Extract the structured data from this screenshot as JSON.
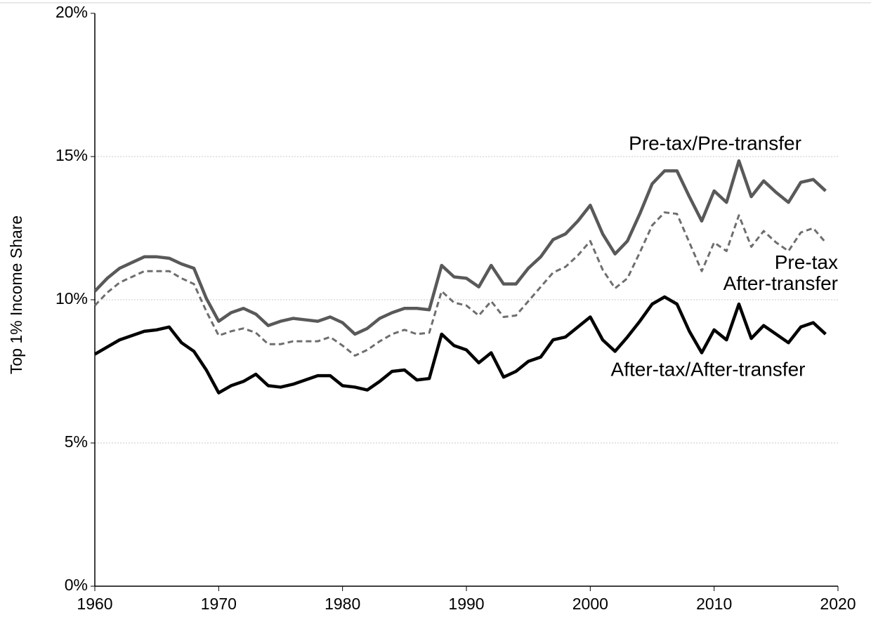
{
  "chart_data": {
    "type": "line",
    "y_label": "Top 1% Income Share",
    "x": [
      1960,
      1961,
      1962,
      1963,
      1964,
      1965,
      1966,
      1967,
      1968,
      1969,
      1970,
      1971,
      1972,
      1973,
      1974,
      1975,
      1976,
      1977,
      1978,
      1979,
      1980,
      1981,
      1982,
      1983,
      1984,
      1985,
      1986,
      1987,
      1988,
      1989,
      1990,
      1991,
      1992,
      1993,
      1994,
      1995,
      1996,
      1997,
      1998,
      1999,
      2000,
      2001,
      2002,
      2003,
      2004,
      2005,
      2006,
      2007,
      2008,
      2009,
      2010,
      2011,
      2012,
      2013,
      2014,
      2015,
      2016,
      2017,
      2018,
      2019
    ],
    "series": [
      {
        "name": "Pre-tax/Pre-transfer",
        "color": "#595959",
        "line_style": "solid",
        "values": [
          10.3,
          10.75,
          11.1,
          11.3,
          11.5,
          11.5,
          11.45,
          11.25,
          11.1,
          10.05,
          9.25,
          9.55,
          9.7,
          9.5,
          9.1,
          9.25,
          9.35,
          9.3,
          9.25,
          9.4,
          9.2,
          8.8,
          9.0,
          9.35,
          9.55,
          9.7,
          9.7,
          9.65,
          11.2,
          10.8,
          10.75,
          10.45,
          11.2,
          10.55,
          10.55,
          11.1,
          11.5,
          12.1,
          12.3,
          12.75,
          13.3,
          12.3,
          11.6,
          12.05,
          13.0,
          14.05,
          14.5,
          14.5,
          13.6,
          12.75,
          13.8,
          13.4,
          14.85,
          13.6,
          14.15,
          13.75,
          13.4,
          14.1,
          14.2,
          13.8
        ]
      },
      {
        "name": "Pre-tax After-transfer",
        "color": "#6e6e6e",
        "line_style": "dashed",
        "values": [
          9.8,
          10.25,
          10.6,
          10.8,
          11.0,
          11.0,
          11.0,
          10.75,
          10.55,
          9.6,
          8.75,
          8.9,
          9.0,
          8.85,
          8.45,
          8.45,
          8.55,
          8.55,
          8.55,
          8.7,
          8.4,
          8.05,
          8.25,
          8.55,
          8.8,
          8.95,
          8.8,
          8.85,
          10.3,
          9.9,
          9.8,
          9.45,
          9.95,
          9.4,
          9.45,
          9.95,
          10.45,
          10.95,
          11.15,
          11.55,
          12.05,
          11.05,
          10.4,
          10.75,
          11.65,
          12.6,
          13.05,
          13.0,
          12.0,
          11.0,
          12.0,
          11.7,
          12.95,
          11.85,
          12.4,
          12.0,
          11.7,
          12.35,
          12.5,
          12.0
        ]
      },
      {
        "name": "After-tax/After-transfer",
        "color": "#000000",
        "line_style": "solid",
        "values": [
          8.1,
          8.35,
          8.6,
          8.75,
          8.9,
          8.95,
          9.05,
          8.5,
          8.2,
          7.55,
          6.75,
          7.0,
          7.15,
          7.4,
          7.0,
          6.95,
          7.05,
          7.2,
          7.35,
          7.35,
          7.0,
          6.95,
          6.85,
          7.15,
          7.5,
          7.55,
          7.2,
          7.25,
          8.8,
          8.4,
          8.25,
          7.8,
          8.15,
          7.3,
          7.5,
          7.85,
          8.0,
          8.6,
          8.7,
          9.05,
          9.4,
          8.6,
          8.2,
          8.7,
          9.25,
          9.85,
          10.1,
          9.85,
          8.9,
          8.15,
          8.95,
          8.6,
          9.85,
          8.65,
          9.1,
          8.8,
          8.5,
          9.05,
          9.2,
          8.8
        ]
      }
    ],
    "xlim": [
      1960,
      2020
    ],
    "xticks": [
      1960,
      1970,
      1980,
      1990,
      2000,
      2010,
      2020
    ],
    "ylim": [
      0,
      20
    ],
    "yticks": [
      {
        "value": 0,
        "label": "0%"
      },
      {
        "value": 5,
        "label": "5%"
      },
      {
        "value": 10,
        "label": "10%"
      },
      {
        "value": 15,
        "label": "15%"
      },
      {
        "value": 20,
        "label": "20%"
      }
    ],
    "grid": true
  }
}
